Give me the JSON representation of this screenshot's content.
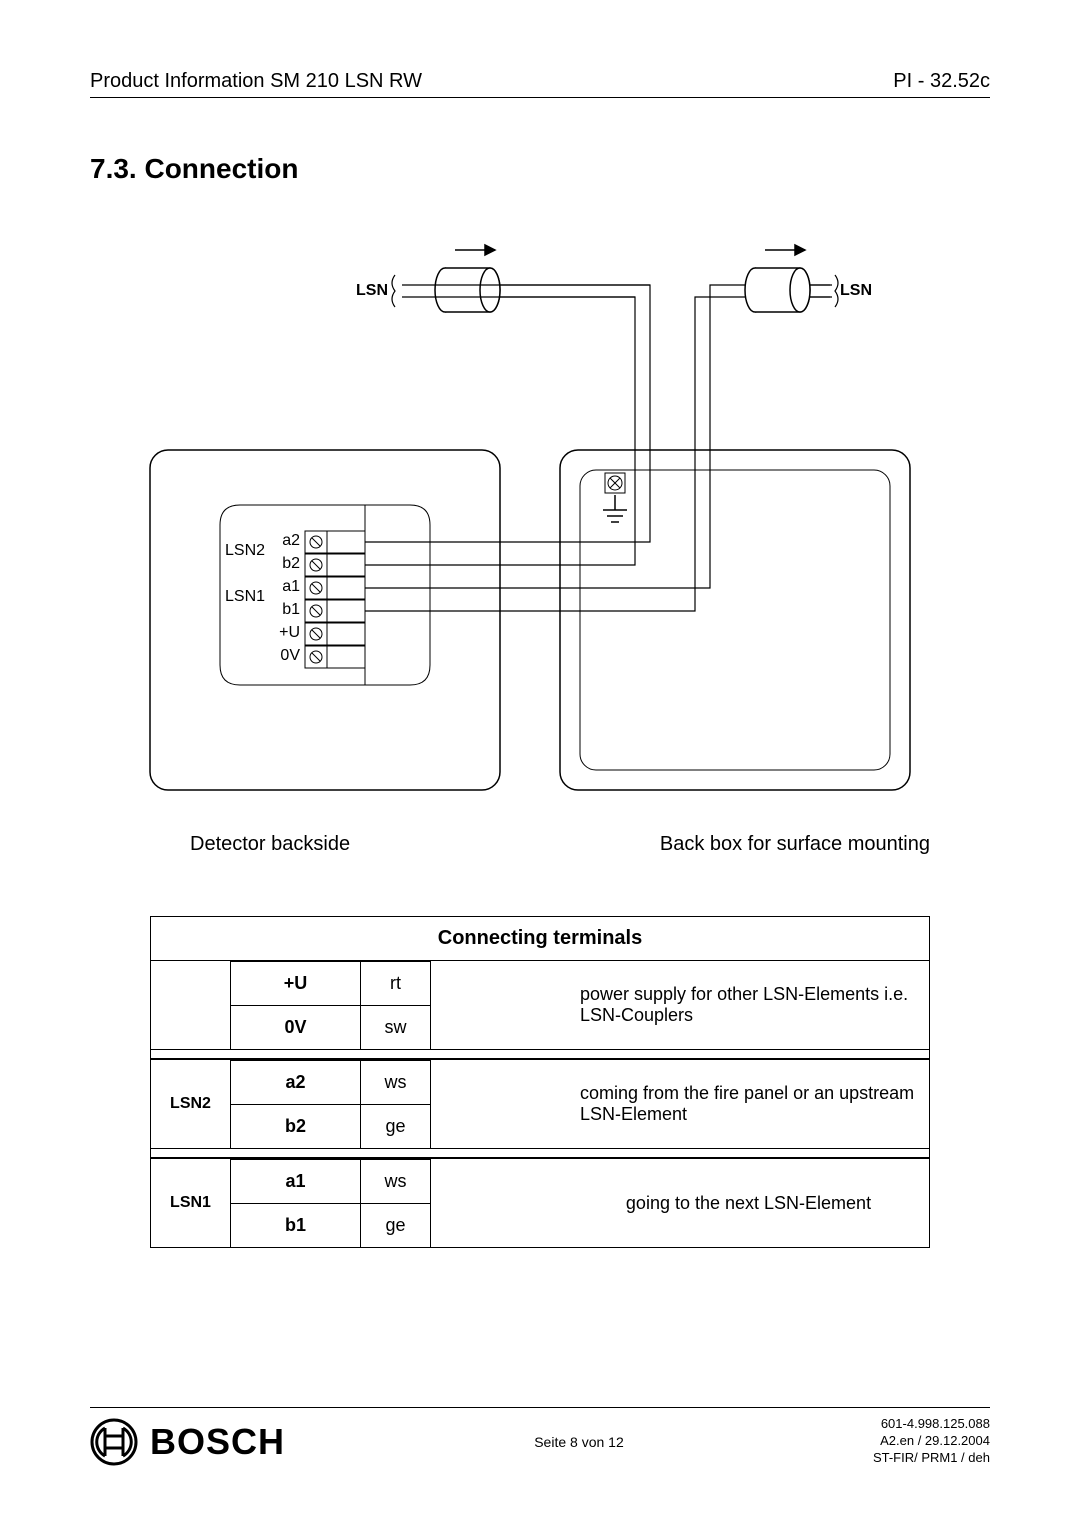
{
  "header": {
    "left": "Product Information SM 210 LSN RW",
    "right": "PI - 32.52c"
  },
  "section": {
    "number": "7.3.",
    "title": "Connection"
  },
  "diagram": {
    "lsn_left": "LSN",
    "lsn_right": "LSN",
    "terminal_labels": [
      "a2",
      "b2",
      "a1",
      "b1",
      "+U",
      "0V"
    ],
    "group_labels": [
      "LSN2",
      "LSN1"
    ],
    "caption_left": "Detector backside",
    "caption_right": "Back box for surface mounting",
    "stroke": "#000000",
    "box_radius": 16,
    "inner_radius": 16
  },
  "table": {
    "title": "Connecting terminals",
    "blocks": [
      {
        "group": "",
        "desc": "power supply for other LSN-Elements i.e. LSN-Couplers",
        "rows": [
          {
            "term": "+U",
            "color": "rt"
          },
          {
            "term": "0V",
            "color": "sw"
          }
        ]
      },
      {
        "group": "LSN2",
        "desc": "coming from the fire panel or an upstream LSN-Element",
        "rows": [
          {
            "term": "a2",
            "color": "ws"
          },
          {
            "term": "b2",
            "color": "ge"
          }
        ]
      },
      {
        "group": "LSN1",
        "desc": "going to the next LSN-Element",
        "rows": [
          {
            "term": "a1",
            "color": "ws"
          },
          {
            "term": "b1",
            "color": "ge"
          }
        ]
      }
    ]
  },
  "footer": {
    "brand": "BOSCH",
    "center": "Seite 8  von 12",
    "line1": "601-4.998.125.088",
    "line2": "A2.en / 29.12.2004",
    "line3": "ST-FIR/ PRM1 / deh"
  }
}
